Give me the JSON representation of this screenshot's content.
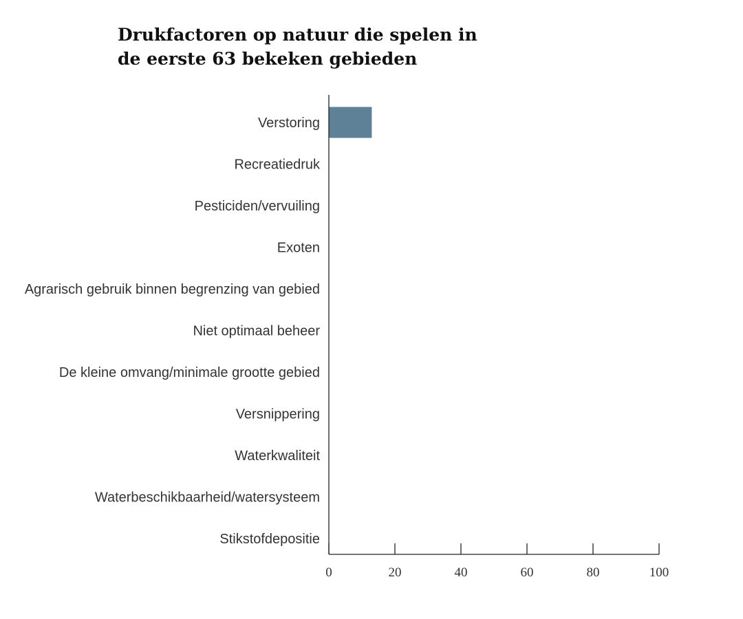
{
  "chart_data": {
    "type": "bar",
    "orientation": "horizontal",
    "title": "Drukfactoren op natuur die spelen in de eerste 63 bekeken gebieden",
    "categories": [
      "Verstoring",
      "Recreatiedruk",
      "Pesticiden/vervuiling",
      "Exoten",
      "Agrarisch gebruik binnen begrenzing van gebied",
      "Niet optimaal beheer",
      "De kleine omvang/minimale grootte gebied",
      "Versnippering",
      "Waterkwaliteit",
      "Waterbeschikbaarheid/watersysteem",
      "Stikstofdepositie"
    ],
    "values": [
      13,
      0,
      0,
      0,
      0,
      0,
      0,
      0,
      0,
      0,
      0
    ],
    "xlim": [
      0,
      100
    ],
    "xticks": [
      0,
      20,
      40,
      60,
      80,
      100
    ],
    "xlabel": "",
    "ylabel": "",
    "grid": false,
    "legend": "none",
    "bar_color": "#5f8197"
  }
}
